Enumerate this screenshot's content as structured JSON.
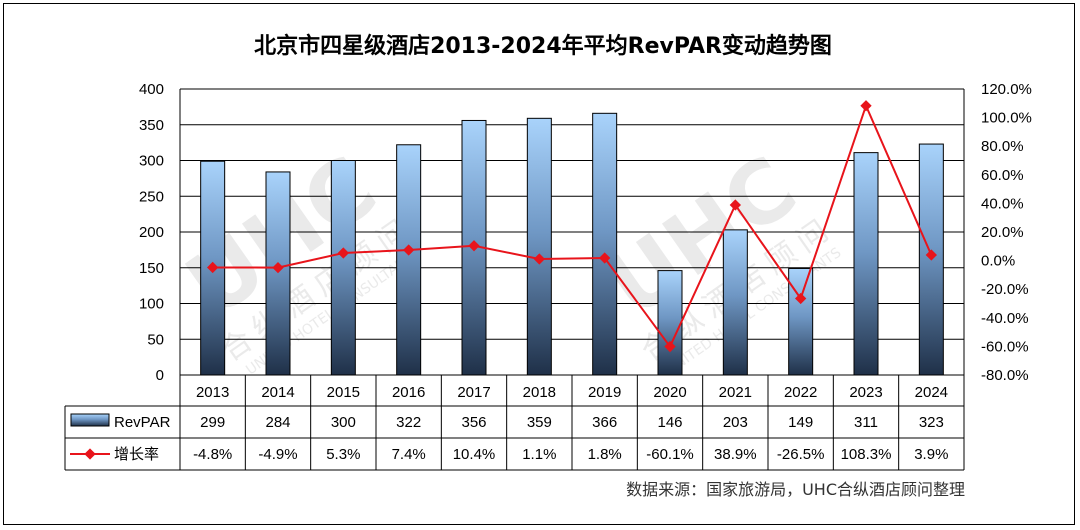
{
  "chart_data": {
    "type": "bar",
    "title": "北京市四星级酒店2013-2024年平均RevPAR变动趋势图",
    "categories": [
      "2013",
      "2014",
      "2015",
      "2016",
      "2017",
      "2018",
      "2019",
      "2020",
      "2021",
      "2022",
      "2023",
      "2024"
    ],
    "series": [
      {
        "name": "RevPAR",
        "type": "bar",
        "axis": "left",
        "values": [
          299,
          284,
          300,
          322,
          356,
          359,
          366,
          146,
          203,
          149,
          311,
          323
        ],
        "labels": [
          "299",
          "284",
          "300",
          "322",
          "356",
          "359",
          "366",
          "146",
          "203",
          "149",
          "311",
          "323"
        ]
      },
      {
        "name": "增长率",
        "type": "line",
        "axis": "right",
        "values": [
          -4.8,
          -4.9,
          5.3,
          7.4,
          10.4,
          1.1,
          1.8,
          -60.1,
          38.9,
          -26.5,
          108.3,
          3.9
        ],
        "labels": [
          "-4.8%",
          "-4.9%",
          "5.3%",
          "7.4%",
          "10.4%",
          "1.1%",
          "1.8%",
          "-60.1%",
          "38.9%",
          "-26.5%",
          "108.3%",
          "3.9%"
        ]
      }
    ],
    "ylim": [
      0,
      400
    ],
    "y_ticks": [
      "0",
      "50",
      "100",
      "150",
      "200",
      "250",
      "300",
      "350",
      "400"
    ],
    "y2lim": [
      -80,
      120
    ],
    "y2_ticks": [
      "-80.0%",
      "-60.0%",
      "-40.0%",
      "-20.0%",
      "0.0%",
      "20.0%",
      "40.0%",
      "60.0%",
      "80.0%",
      "100.0%",
      "120.0%"
    ],
    "grid": true,
    "legend": "data-table",
    "source": "数据来源：国家旅游局，UHC合纵酒店顾问整理",
    "colors": {
      "bar_top": "#a9d3fb",
      "bar_bottom": "#1f3048",
      "line": "#e8141b"
    },
    "watermark": {
      "logo": "UHC",
      "text": "合纵酒店顾问",
      "subtext": "UNITED HOTEL CONSULTANTS"
    }
  }
}
